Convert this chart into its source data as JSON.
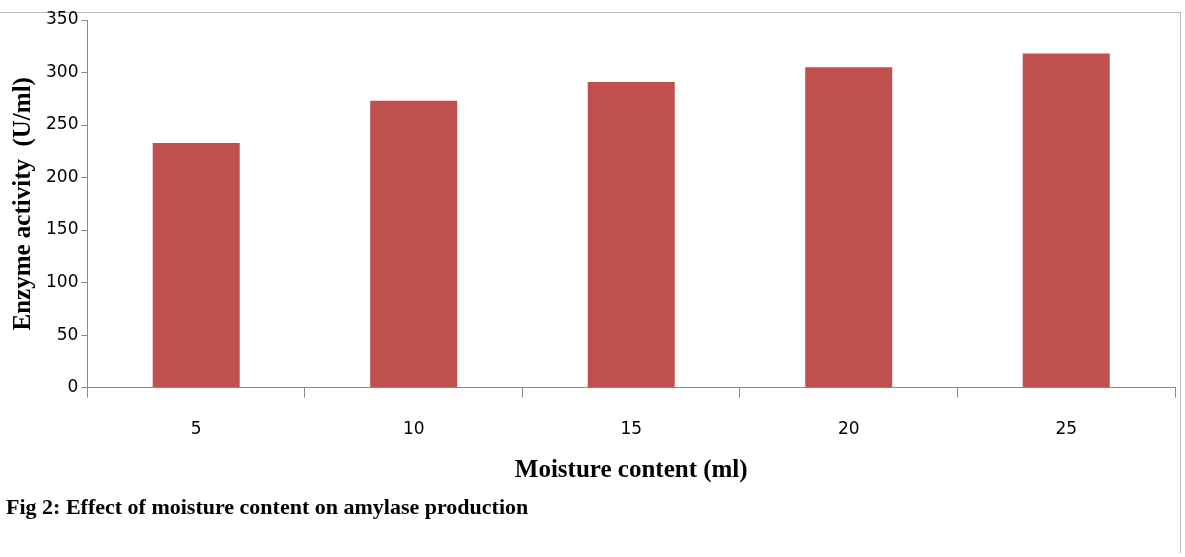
{
  "chart_data": {
    "type": "bar",
    "xlabel": "Moisture content (ml)",
    "ylabel": "Enzyme activity  (U/ml)",
    "categories": [
      "5",
      "10",
      "15",
      "20",
      "25"
    ],
    "values": [
      233,
      273,
      291,
      305,
      318
    ],
    "color": "#c0504d",
    "ylim": [
      0,
      350
    ],
    "yticks": [
      0,
      50,
      100,
      150,
      200,
      250,
      300,
      350
    ],
    "grid": false,
    "annotations": [
      "Fig 2: Effect of moisture content on amylase production"
    ]
  }
}
